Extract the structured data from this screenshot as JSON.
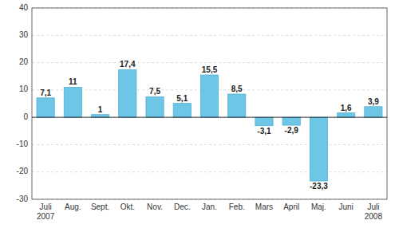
{
  "chart_data": {
    "type": "bar",
    "categories": [
      "Juli\n2007",
      "Aug.",
      "Sept.",
      "Okt.",
      "Nov.",
      "Dec.",
      "Jan.",
      "Feb.",
      "Mars",
      "April",
      "Maj.",
      "Juni",
      "Juli\n2008"
    ],
    "values": [
      7.1,
      11,
      1,
      17.4,
      7.5,
      5.1,
      15.5,
      8.5,
      -3.1,
      -2.9,
      -23.3,
      1.6,
      3.9
    ],
    "value_labels": [
      "7,1",
      "11",
      "1",
      "17,4",
      "7,5",
      "5,1",
      "15,5",
      "8,5",
      "-3,1",
      "-2,9",
      "-23,3",
      "1,6",
      "3,9"
    ],
    "data_labels": true,
    "color": "#6EC6E6",
    "ylim": [
      -30,
      40
    ],
    "yticks": [
      -30,
      -20,
      -10,
      0,
      10,
      20,
      30,
      40
    ],
    "grid": true
  }
}
